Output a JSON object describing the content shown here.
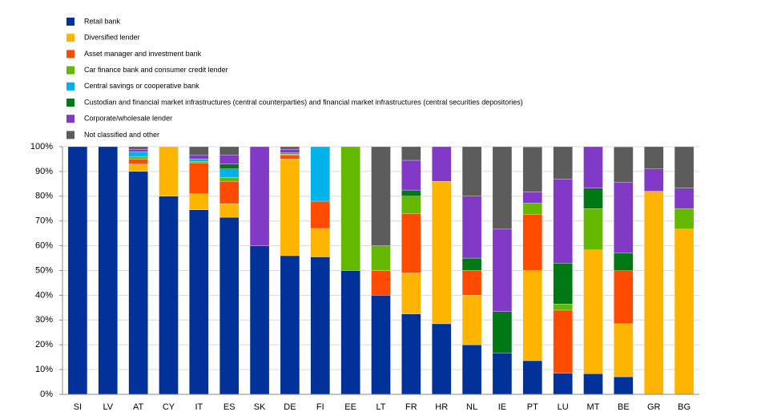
{
  "chart_data": {
    "type": "stacked_bar",
    "categories": [
      "SI",
      "LV",
      "AT",
      "CY",
      "IT",
      "ES",
      "SK",
      "DE",
      "FI",
      "EE",
      "LT",
      "FR",
      "HR",
      "NL",
      "IE",
      "PT",
      "LU",
      "MT",
      "BE",
      "GR",
      "BG"
    ],
    "series": [
      {
        "name": "Retail bank",
        "color": "#003299",
        "values": [
          100,
          100,
          90,
          80,
          74.5,
          71.5,
          60,
          56,
          55.5,
          50,
          40,
          32.5,
          28.5,
          20,
          16.7,
          13.6,
          8.5,
          8.3,
          7.1,
          0,
          0
        ]
      },
      {
        "name": "Diversified lender",
        "color": "#ffb400",
        "values": [
          0,
          0,
          3,
          20,
          6.5,
          5.5,
          0,
          39,
          11.5,
          0,
          0,
          16.5,
          57.5,
          20,
          0,
          36.4,
          0,
          50,
          21.4,
          82,
          66.7
        ]
      },
      {
        "name": "Asset manager and investment bank",
        "color": "#ff4b00",
        "values": [
          0,
          0,
          2,
          0,
          12.5,
          9,
          0,
          1.5,
          11,
          0,
          10,
          24,
          0,
          10,
          0,
          22.7,
          25.5,
          0,
          21.4,
          0,
          0
        ]
      },
      {
        "name": "Car finance bank and consumer credit lender",
        "color": "#65b800",
        "values": [
          0,
          0,
          1,
          0,
          0.5,
          1.5,
          0,
          0.5,
          0,
          50,
          10,
          7,
          0,
          0,
          0,
          4.5,
          2.5,
          16.7,
          0,
          0,
          8.3
        ]
      },
      {
        "name": "Central savings or cooperative bank",
        "color": "#00b1ea",
        "values": [
          0,
          0,
          2,
          0,
          1,
          3.5,
          0,
          0.5,
          22,
          0,
          0,
          0,
          0,
          0,
          0,
          0,
          0,
          0,
          0,
          0,
          0
        ]
      },
      {
        "name": "Custodian and financial market infrastructures (central counterparties) and financial market infrastructures (central securities depositories)",
        "color": "#007816",
        "values": [
          0,
          0,
          0,
          0,
          0,
          2,
          0,
          0,
          0,
          0,
          0,
          2.5,
          0,
          5,
          16.7,
          0,
          16.5,
          8.3,
          7.1,
          0,
          0
        ]
      },
      {
        "name": "Corporate/wholesale lender",
        "color": "#8139c6",
        "values": [
          0,
          0,
          1,
          0,
          1.5,
          3.5,
          40,
          1.5,
          0,
          0,
          0,
          12,
          14,
          25,
          33.3,
          4.5,
          34,
          16.7,
          28.6,
          9,
          8.3
        ]
      },
      {
        "name": "Not classified and other",
        "color": "#5c5c5c",
        "values": [
          0,
          0,
          1,
          0,
          3.5,
          3.5,
          0,
          1,
          0,
          0,
          40,
          5.5,
          0,
          20,
          33.3,
          18.2,
          13,
          0,
          14.3,
          9,
          16.7
        ]
      }
    ],
    "ylim": [
      0,
      100
    ],
    "yticks": [
      {
        "value": 0,
        "label": "0%"
      },
      {
        "value": 10,
        "label": "10%"
      },
      {
        "value": 20,
        "label": "20%"
      },
      {
        "value": 30,
        "label": "30%"
      },
      {
        "value": 40,
        "label": "40%"
      },
      {
        "value": 50,
        "label": "50%"
      },
      {
        "value": 60,
        "label": "60%"
      },
      {
        "value": 70,
        "label": "70%"
      },
      {
        "value": 80,
        "label": "80%"
      },
      {
        "value": 90,
        "label": "90%"
      },
      {
        "value": 100,
        "label": "100%"
      }
    ],
    "grid": true,
    "legend": "top-left"
  }
}
